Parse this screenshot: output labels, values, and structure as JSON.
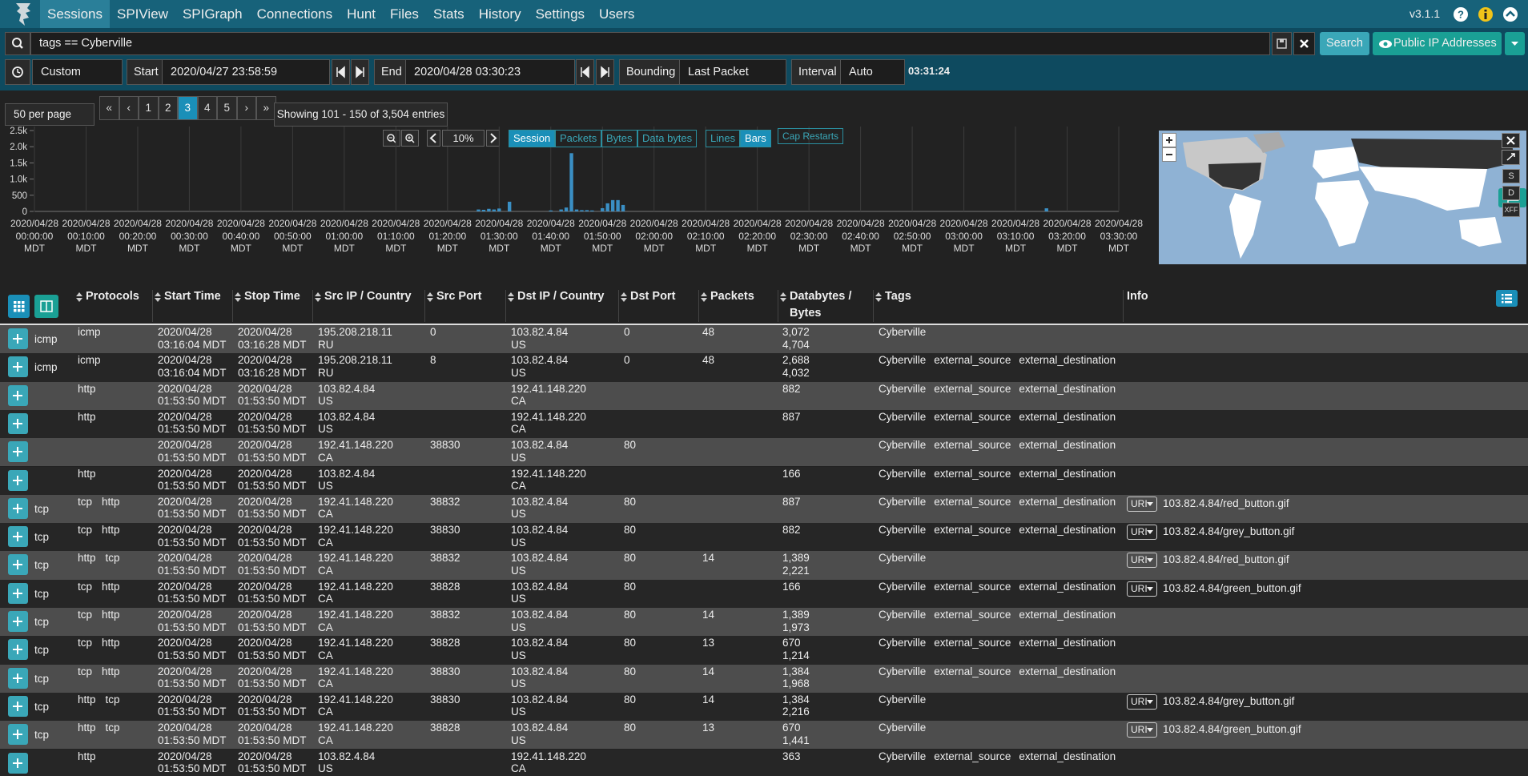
{
  "nav": {
    "items": [
      "Sessions",
      "SPIView",
      "SPIGraph",
      "Connections",
      "Hunt",
      "Files",
      "Stats",
      "History",
      "Settings",
      "Users"
    ],
    "current": "Sessions",
    "version": "v3.1.1"
  },
  "search": {
    "query": "tags == Cyberville",
    "button": "Search",
    "view": "Public IP Addresses"
  },
  "time": {
    "range": "Custom",
    "start_label": "Start",
    "start": "2020/04/27 23:58:59",
    "end_label": "End",
    "end": "2020/04/28 03:30:23",
    "bounding_label": "Bounding",
    "bounding": "Last Packet",
    "interval_label": "Interval",
    "interval": "Auto",
    "duration": "03:31:24"
  },
  "paging": {
    "per_page": "50 per page",
    "links": [
      "«",
      "‹",
      "1",
      "2",
      "3",
      "4",
      "5",
      "›",
      "»"
    ],
    "current": "3",
    "summary": "Showing 101 - 150 of 3,504 entries"
  },
  "histogram": {
    "xlim": [
      "2020/04/28 00:00:00 MDT",
      "2020/04/28 03:30:00 MDT"
    ],
    "xticks": [
      "2020/04/28 00:00:00 MDT",
      "2020/04/28 00:10:00 MDT",
      "2020/04/28 00:20:00 MDT",
      "2020/04/28 00:30:00 MDT",
      "2020/04/28 00:40:00 MDT",
      "2020/04/28 00:50:00 MDT",
      "2020/04/28 01:00:00 MDT",
      "2020/04/28 01:10:00 MDT",
      "2020/04/28 01:20:00 MDT",
      "2020/04/28 01:30:00 MDT",
      "2020/04/28 01:40:00 MDT",
      "2020/04/28 01:50:00 MDT",
      "2020/04/28 02:00:00 MDT",
      "2020/04/28 02:10:00 MDT",
      "2020/04/28 02:20:00 MDT",
      "2020/04/28 02:30:00 MDT",
      "2020/04/28 02:40:00 MDT",
      "2020/04/28 02:50:00 MDT",
      "2020/04/28 03:00:00 MDT",
      "2020/04/28 03:10:00 MDT",
      "2020/04/28 03:20:00 MDT",
      "2020/04/28 03:30:00 MDT"
    ],
    "ylim": [
      0,
      2500
    ],
    "yticks": [
      0,
      500,
      {
        "value": 1000,
        "label": "1.0k"
      },
      {
        "value": 1500,
        "label": "1.5k"
      },
      {
        "value": 2000,
        "label": "2.0k"
      },
      {
        "value": 2500,
        "label": "2.5k"
      }
    ],
    "x": [
      "2020/04/28 01:26:00",
      "2020/04/28 01:27:00",
      "2020/04/28 01:28:00",
      "2020/04/28 01:29:00",
      "2020/04/28 01:30:00",
      "2020/04/28 01:32:00",
      "2020/04/28 01:40:00",
      "2020/04/28 01:42:00",
      "2020/04/28 01:43:00",
      "2020/04/28 01:44:00",
      "2020/04/28 01:45:00",
      "2020/04/28 01:46:00",
      "2020/04/28 01:47:00",
      "2020/04/28 01:48:00",
      "2020/04/28 01:50:00",
      "2020/04/28 01:51:00",
      "2020/04/28 01:52:00",
      "2020/04/28 01:53:00",
      "2020/04/28 01:54:00",
      "2020/04/28 03:16:00"
    ],
    "values": [
      60,
      50,
      80,
      60,
      90,
      300,
      30,
      60,
      120,
      1800,
      60,
      40,
      40,
      30,
      100,
      250,
      350,
      350,
      200,
      96
    ],
    "color": "#3a8fc4",
    "zoom": "10%",
    "metrics": [
      "Session",
      "Packets",
      "Bytes",
      "Data bytes"
    ],
    "current_metric": "Session",
    "styles": [
      "Lines",
      "Bars"
    ],
    "current_style": "Bars",
    "cap_restarts": "Cap Restarts"
  },
  "map": {
    "buttons": [
      "S",
      "D",
      "XFF"
    ]
  },
  "table": {
    "columns": [
      "Protocols",
      "Start Time",
      "Stop Time",
      "Src IP / Country",
      "Src Port",
      "Dst IP / Country",
      "Dst Port",
      "Packets",
      "Databytes / Bytes",
      "Tags",
      "Info"
    ],
    "rows": [
      {
        "ip_protocol": "icmp",
        "protocols": [
          "icmp"
        ],
        "start": [
          "2020/04/28",
          "03:16:04 MDT"
        ],
        "stop": [
          "2020/04/28",
          "03:16:28 MDT"
        ],
        "src": [
          "195.208.218.11",
          "RU"
        ],
        "src_port": "0",
        "dst": [
          "103.82.4.84",
          "US"
        ],
        "dst_port": "0",
        "packets": "48",
        "bytes": [
          "3,072",
          "4,704"
        ],
        "tags": [
          "Cyberville"
        ]
      },
      {
        "ip_protocol": "icmp",
        "protocols": [
          "icmp"
        ],
        "start": [
          "2020/04/28",
          "03:16:04 MDT"
        ],
        "stop": [
          "2020/04/28",
          "03:16:28 MDT"
        ],
        "src": [
          "195.208.218.11",
          "RU"
        ],
        "src_port": "8",
        "dst": [
          "103.82.4.84",
          "US"
        ],
        "dst_port": "0",
        "packets": "48",
        "bytes": [
          "2,688",
          "4,032"
        ],
        "tags": [
          "Cyberville",
          "external_source",
          "external_destination"
        ]
      },
      {
        "protocols": [
          "http"
        ],
        "start": [
          "2020/04/28",
          "01:53:50 MDT"
        ],
        "stop": [
          "2020/04/28",
          "01:53:50 MDT"
        ],
        "src": [
          "103.82.4.84",
          "US"
        ],
        "dst": [
          "192.41.148.220",
          "CA"
        ],
        "bytes": [
          "882"
        ],
        "tags": [
          "Cyberville",
          "external_source",
          "external_destination"
        ]
      },
      {
        "protocols": [
          "http"
        ],
        "start": [
          "2020/04/28",
          "01:53:50 MDT"
        ],
        "stop": [
          "2020/04/28",
          "01:53:50 MDT"
        ],
        "src": [
          "103.82.4.84",
          "US"
        ],
        "dst": [
          "192.41.148.220",
          "CA"
        ],
        "bytes": [
          "887"
        ],
        "tags": [
          "Cyberville",
          "external_source",
          "external_destination"
        ]
      },
      {
        "protocols": [],
        "start": [
          "2020/04/28",
          "01:53:50 MDT"
        ],
        "stop": [
          "2020/04/28",
          "01:53:50 MDT"
        ],
        "src": [
          "192.41.148.220",
          "CA"
        ],
        "src_port": "38830",
        "dst": [
          "103.82.4.84",
          "US"
        ],
        "dst_port": "80",
        "tags": [
          "Cyberville",
          "external_source",
          "external_destination"
        ]
      },
      {
        "protocols": [
          "http"
        ],
        "start": [
          "2020/04/28",
          "01:53:50 MDT"
        ],
        "stop": [
          "2020/04/28",
          "01:53:50 MDT"
        ],
        "src": [
          "103.82.4.84",
          "US"
        ],
        "dst": [
          "192.41.148.220",
          "CA"
        ],
        "bytes": [
          "166"
        ],
        "tags": [
          "Cyberville",
          "external_source",
          "external_destination"
        ]
      },
      {
        "ip_protocol": "tcp",
        "protocols": [
          "tcp",
          "http"
        ],
        "start": [
          "2020/04/28",
          "01:53:50 MDT"
        ],
        "stop": [
          "2020/04/28",
          "01:53:50 MDT"
        ],
        "src": [
          "192.41.148.220",
          "CA"
        ],
        "src_port": "38832",
        "dst": [
          "103.82.4.84",
          "US"
        ],
        "dst_port": "80",
        "bytes": [
          "887"
        ],
        "tags": [
          "Cyberville",
          "external_source",
          "external_destination"
        ],
        "info": {
          "field": "URI",
          "value": "103.82.4.84/red_button.gif"
        }
      },
      {
        "ip_protocol": "tcp",
        "protocols": [
          "tcp",
          "http"
        ],
        "start": [
          "2020/04/28",
          "01:53:50 MDT"
        ],
        "stop": [
          "2020/04/28",
          "01:53:50 MDT"
        ],
        "src": [
          "192.41.148.220",
          "CA"
        ],
        "src_port": "38830",
        "dst": [
          "103.82.4.84",
          "US"
        ],
        "dst_port": "80",
        "bytes": [
          "882"
        ],
        "tags": [
          "Cyberville",
          "external_source",
          "external_destination"
        ],
        "info": {
          "field": "URI",
          "value": "103.82.4.84/grey_button.gif"
        }
      },
      {
        "ip_protocol": "tcp",
        "protocols": [
          "http",
          "tcp"
        ],
        "start": [
          "2020/04/28",
          "01:53:50 MDT"
        ],
        "stop": [
          "2020/04/28",
          "01:53:50 MDT"
        ],
        "src": [
          "192.41.148.220",
          "CA"
        ],
        "src_port": "38832",
        "dst": [
          "103.82.4.84",
          "US"
        ],
        "dst_port": "80",
        "packets": "14",
        "bytes": [
          "1,389",
          "2,221"
        ],
        "tags": [
          "Cyberville"
        ],
        "info": {
          "field": "URI",
          "value": "103.82.4.84/red_button.gif"
        }
      },
      {
        "ip_protocol": "tcp",
        "protocols": [
          "tcp",
          "http"
        ],
        "start": [
          "2020/04/28",
          "01:53:50 MDT"
        ],
        "stop": [
          "2020/04/28",
          "01:53:50 MDT"
        ],
        "src": [
          "192.41.148.220",
          "CA"
        ],
        "src_port": "38828",
        "dst": [
          "103.82.4.84",
          "US"
        ],
        "dst_port": "80",
        "bytes": [
          "166"
        ],
        "tags": [
          "Cyberville",
          "external_source",
          "external_destination"
        ],
        "info": {
          "field": "URI",
          "value": "103.82.4.84/green_button.gif"
        }
      },
      {
        "ip_protocol": "tcp",
        "protocols": [
          "tcp",
          "http"
        ],
        "start": [
          "2020/04/28",
          "01:53:50 MDT"
        ],
        "stop": [
          "2020/04/28",
          "01:53:50 MDT"
        ],
        "src": [
          "192.41.148.220",
          "CA"
        ],
        "src_port": "38832",
        "dst": [
          "103.82.4.84",
          "US"
        ],
        "dst_port": "80",
        "packets": "14",
        "bytes": [
          "1,389",
          "1,973"
        ],
        "tags": [
          "Cyberville",
          "external_source",
          "external_destination"
        ]
      },
      {
        "ip_protocol": "tcp",
        "protocols": [
          "tcp",
          "http"
        ],
        "start": [
          "2020/04/28",
          "01:53:50 MDT"
        ],
        "stop": [
          "2020/04/28",
          "01:53:50 MDT"
        ],
        "src": [
          "192.41.148.220",
          "CA"
        ],
        "src_port": "38828",
        "dst": [
          "103.82.4.84",
          "US"
        ],
        "dst_port": "80",
        "packets": "13",
        "bytes": [
          "670",
          "1,214"
        ],
        "tags": [
          "Cyberville",
          "external_source",
          "external_destination"
        ]
      },
      {
        "ip_protocol": "tcp",
        "protocols": [
          "tcp",
          "http"
        ],
        "start": [
          "2020/04/28",
          "01:53:50 MDT"
        ],
        "stop": [
          "2020/04/28",
          "01:53:50 MDT"
        ],
        "src": [
          "192.41.148.220",
          "CA"
        ],
        "src_port": "38830",
        "dst": [
          "103.82.4.84",
          "US"
        ],
        "dst_port": "80",
        "packets": "14",
        "bytes": [
          "1,384",
          "1,968"
        ],
        "tags": [
          "Cyberville",
          "external_source",
          "external_destination"
        ]
      },
      {
        "ip_protocol": "tcp",
        "protocols": [
          "http",
          "tcp"
        ],
        "start": [
          "2020/04/28",
          "01:53:50 MDT"
        ],
        "stop": [
          "2020/04/28",
          "01:53:50 MDT"
        ],
        "src": [
          "192.41.148.220",
          "CA"
        ],
        "src_port": "38830",
        "dst": [
          "103.82.4.84",
          "US"
        ],
        "dst_port": "80",
        "packets": "14",
        "bytes": [
          "1,384",
          "2,216"
        ],
        "tags": [
          "Cyberville"
        ],
        "info": {
          "field": "URI",
          "value": "103.82.4.84/grey_button.gif"
        }
      },
      {
        "ip_protocol": "tcp",
        "protocols": [
          "http",
          "tcp"
        ],
        "start": [
          "2020/04/28",
          "01:53:50 MDT"
        ],
        "stop": [
          "2020/04/28",
          "01:53:50 MDT"
        ],
        "src": [
          "192.41.148.220",
          "CA"
        ],
        "src_port": "38828",
        "dst": [
          "103.82.4.84",
          "US"
        ],
        "dst_port": "80",
        "packets": "13",
        "bytes": [
          "670",
          "1,441"
        ],
        "tags": [
          "Cyberville"
        ],
        "info": {
          "field": "URI",
          "value": "103.82.4.84/green_button.gif"
        }
      },
      {
        "protocols": [
          "http"
        ],
        "start": [
          "2020/04/28",
          "01:53:50 MDT"
        ],
        "stop": [
          "2020/04/28",
          "01:53:50 MDT"
        ],
        "src": [
          "103.82.4.84",
          "US"
        ],
        "dst": [
          "192.41.148.220",
          "CA"
        ],
        "bytes": [
          "363"
        ],
        "tags": [
          "Cyberville",
          "external_source",
          "external_destination"
        ]
      }
    ]
  }
}
